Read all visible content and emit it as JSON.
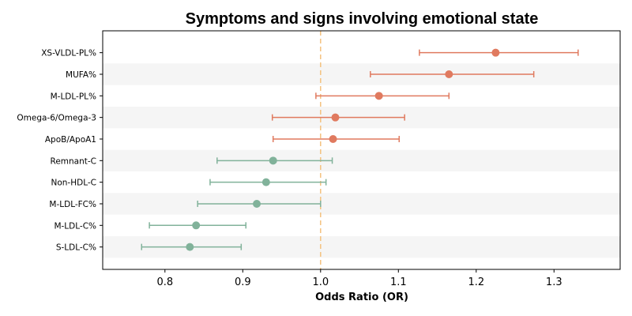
{
  "chart_data": {
    "type": "forest",
    "title": "Symptoms and signs involving emotional state",
    "xlabel": "Odds Ratio (OR)",
    "ylabel": "",
    "xlim": [
      0.72,
      1.385
    ],
    "x_ticks": [
      0.8,
      0.9,
      1.0,
      1.1,
      1.2,
      1.3
    ],
    "x_tick_labels": [
      "0.8",
      "0.9",
      "1.0",
      "1.1",
      "1.2",
      "1.3"
    ],
    "reference_line": 1.0,
    "grid": false,
    "alternating_row_shading": true,
    "colors": {
      "above_one": "#e07a5f",
      "below_one": "#81b29a",
      "reference": "#f4c27f",
      "stripe": "#f5f5f5"
    },
    "points": [
      {
        "label": "XS-VLDL-PL%",
        "or": 1.225,
        "lower": 1.127,
        "upper": 1.331
      },
      {
        "label": "MUFA%",
        "or": 1.165,
        "lower": 1.064,
        "upper": 1.274
      },
      {
        "label": "M-LDL-PL%",
        "or": 1.075,
        "lower": 0.994,
        "upper": 1.165
      },
      {
        "label": "Omega-6/Omega-3",
        "or": 1.019,
        "lower": 0.938,
        "upper": 1.108
      },
      {
        "label": "ApoB/ApoA1",
        "or": 1.016,
        "lower": 0.939,
        "upper": 1.101
      },
      {
        "label": "Remnant-C",
        "or": 0.939,
        "lower": 0.867,
        "upper": 1.015
      },
      {
        "label": "Non-HDL-C",
        "or": 0.93,
        "lower": 0.858,
        "upper": 1.007
      },
      {
        "label": "M-LDL-FC%",
        "or": 0.918,
        "lower": 0.842,
        "upper": 1.0
      },
      {
        "label": "M-LDL-C%",
        "or": 0.84,
        "lower": 0.78,
        "upper": 0.904
      },
      {
        "label": "S-LDL-C%",
        "or": 0.832,
        "lower": 0.77,
        "upper": 0.898
      }
    ]
  }
}
